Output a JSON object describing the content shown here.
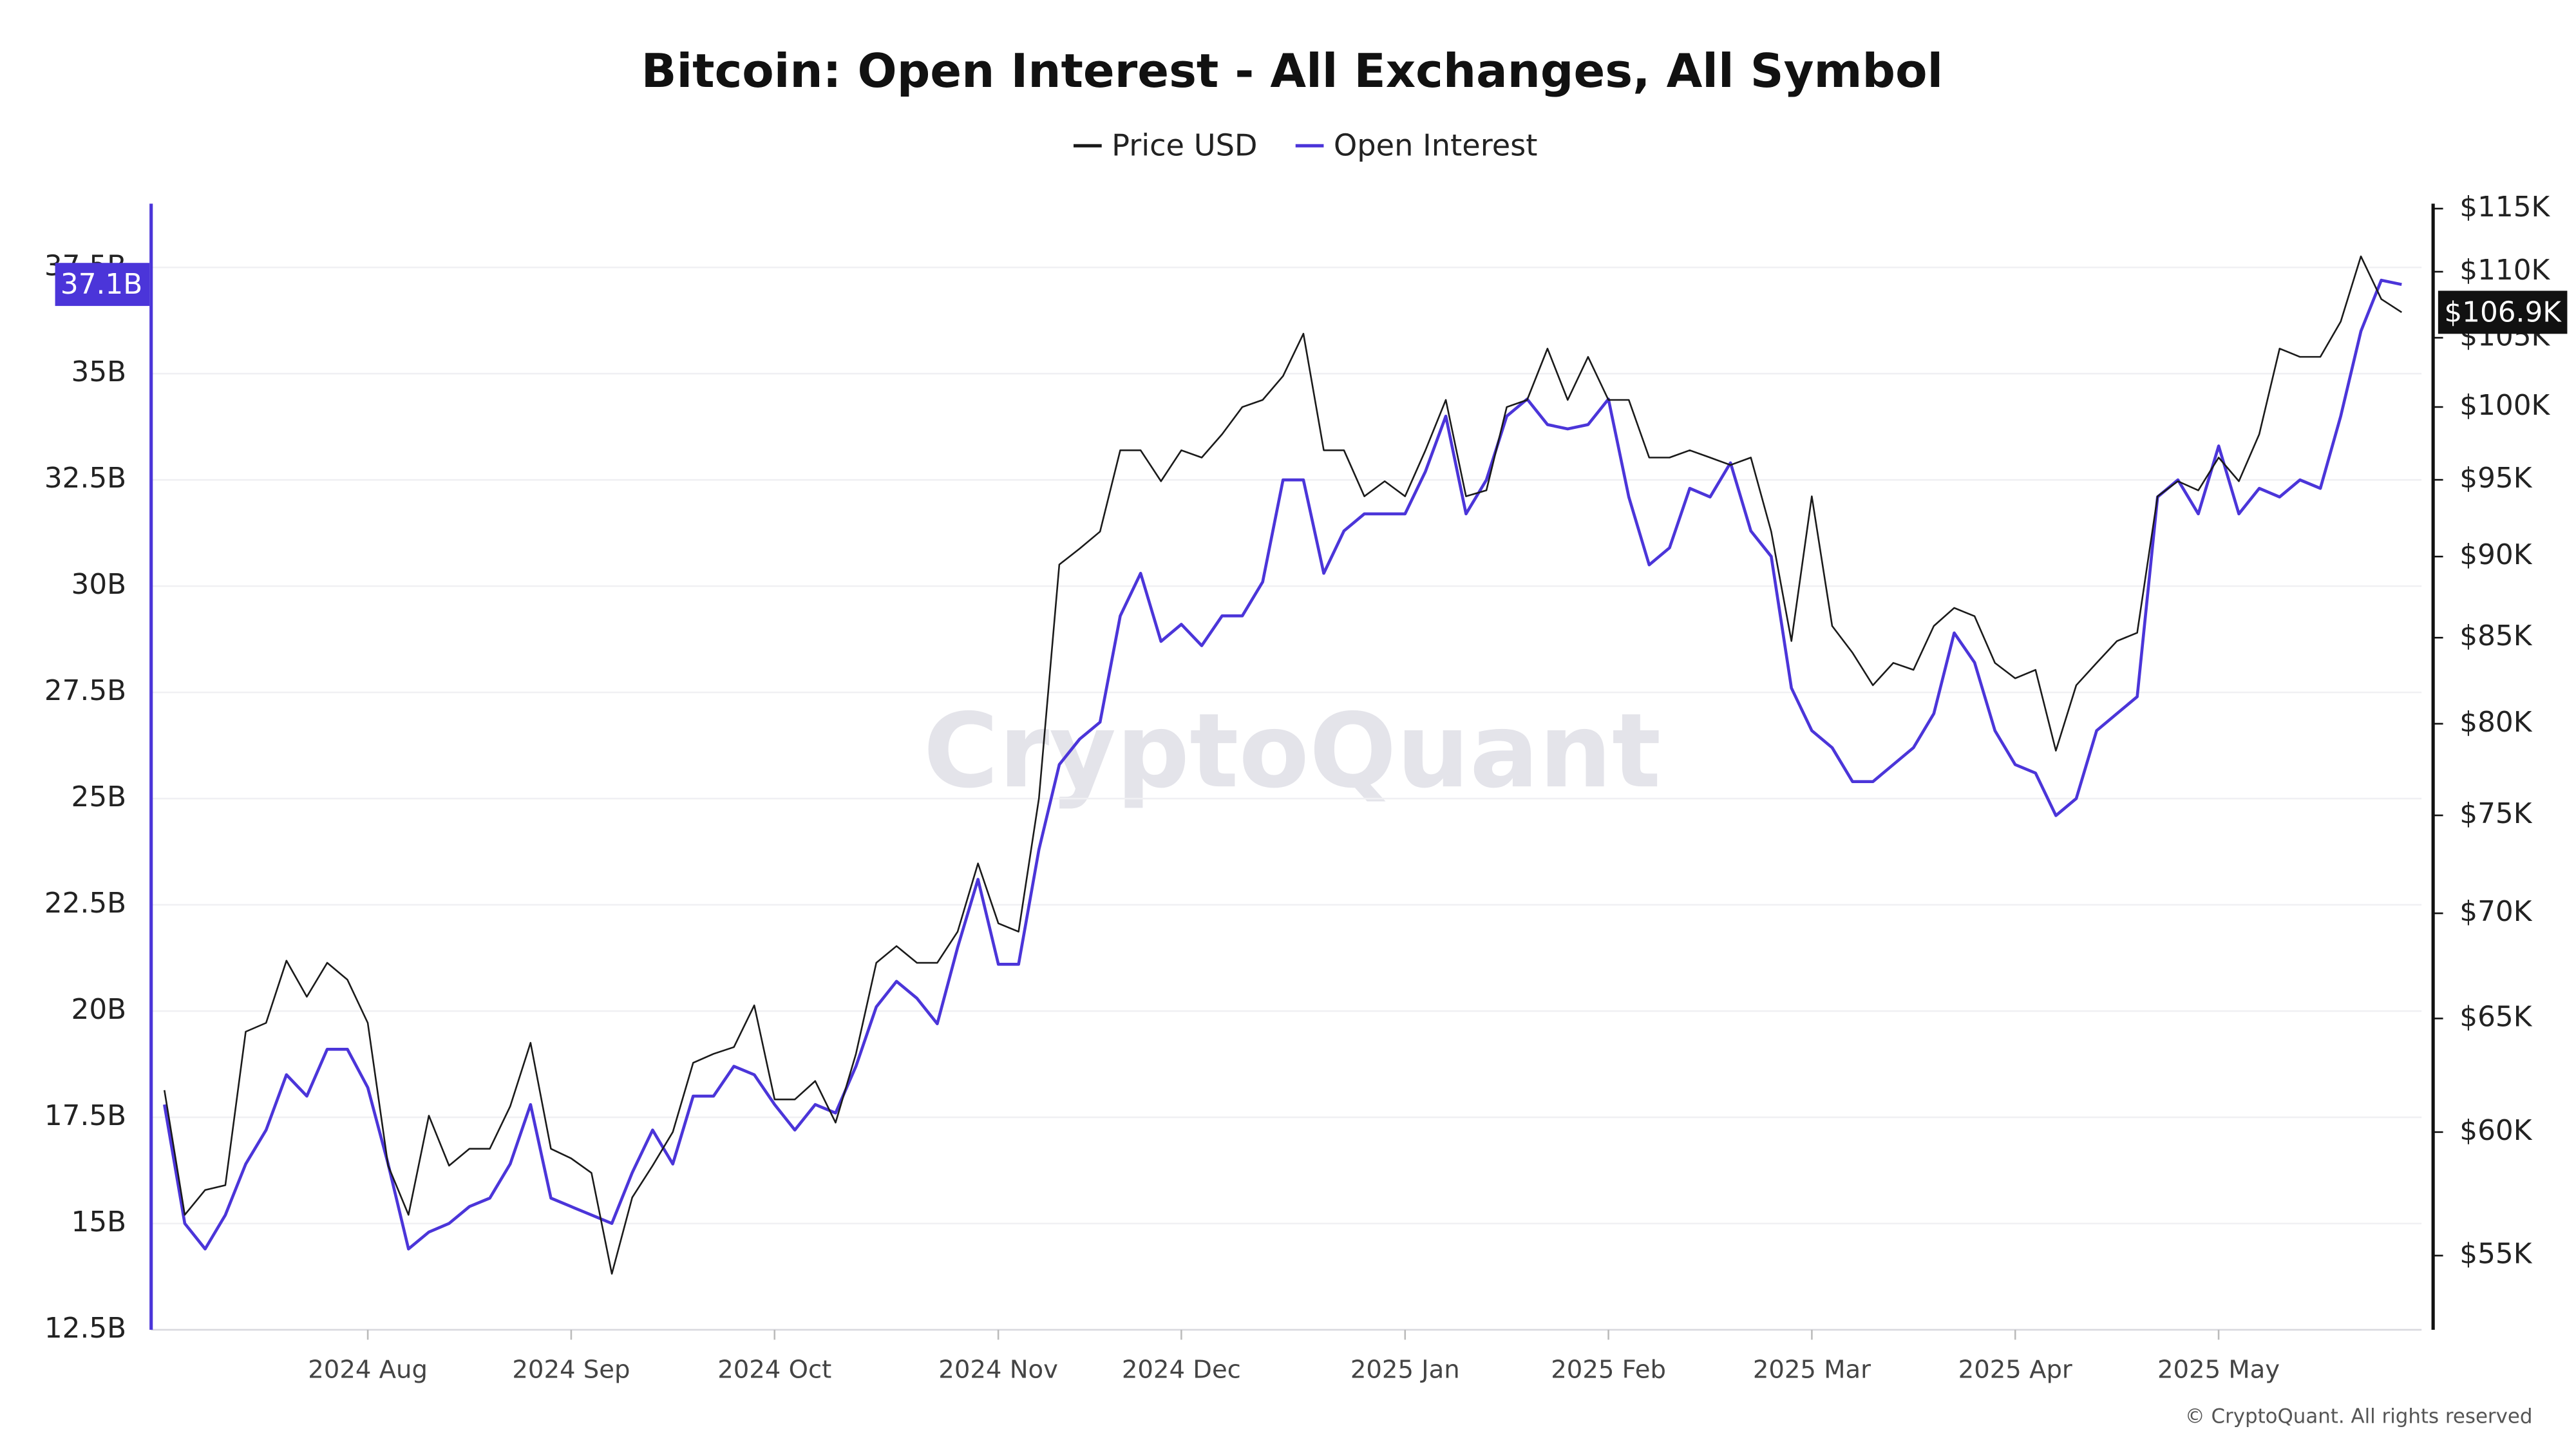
{
  "chart_data": {
    "type": "line",
    "title": "Bitcoin: Open Interest - All Exchanges, All Symbol",
    "watermark": "CryptoQuant",
    "footer": "© CryptoQuant. All rights reserved",
    "categories": [
      null,
      null,
      null,
      null,
      null,
      null,
      null,
      null,
      null,
      null,
      "2024 Aug",
      null,
      null,
      null,
      null,
      null,
      null,
      null,
      null,
      null,
      "2024 Sep",
      null,
      null,
      null,
      null,
      null,
      null,
      null,
      null,
      null,
      "2024 Oct",
      null,
      null,
      null,
      null,
      null,
      null,
      null,
      null,
      null,
      null,
      "2024 Nov",
      null,
      null,
      null,
      null,
      null,
      null,
      null,
      null,
      "2024 Dec",
      null,
      null,
      null,
      null,
      null,
      null,
      null,
      null,
      null,
      null,
      "2025 Jan",
      null,
      null,
      null,
      null,
      null,
      null,
      null,
      null,
      null,
      "2025 Feb",
      null,
      null,
      null,
      null,
      null,
      null,
      null,
      null,
      null,
      "2025 Mar",
      null,
      null,
      null,
      null,
      null,
      null,
      null,
      null,
      null,
      "2025 Apr",
      null,
      null,
      null,
      null,
      null,
      null,
      null,
      null,
      null,
      "2025 May",
      null,
      null,
      null,
      null,
      null,
      null,
      null,
      null,
      null
    ],
    "series": [
      {
        "name": "Price USD",
        "color": "#1a1a1a",
        "axis": "y2",
        "current_label": "$106.9K",
        "values": [
          61800,
          56600,
          57600,
          57800,
          64400,
          64800,
          67700,
          66000,
          67600,
          66800,
          64800,
          58600,
          56600,
          60700,
          58600,
          59300,
          59300,
          61100,
          63900,
          59300,
          58900,
          58300,
          54300,
          57300,
          58600,
          60000,
          63000,
          63400,
          63700,
          65600,
          61400,
          61400,
          62200,
          60400,
          63400,
          67600,
          68400,
          67600,
          67600,
          69100,
          72500,
          69500,
          69100,
          75900,
          89500,
          90500,
          91600,
          97000,
          97000,
          94900,
          97000,
          96500,
          98100,
          100000,
          100500,
          102200,
          105300,
          97000,
          97000,
          93900,
          94900,
          93900,
          97000,
          100500,
          93900,
          94300,
          100000,
          100500,
          104200,
          100500,
          103600,
          100500,
          100500,
          96500,
          96500,
          97000,
          96500,
          96000,
          96500,
          91600,
          84800,
          93900,
          85700,
          84100,
          82200,
          83500,
          83100,
          85700,
          86800,
          86300,
          83500,
          82600,
          83100,
          78500,
          82200,
          83500,
          84800,
          85300,
          93900,
          94900,
          94300,
          96500,
          94900,
          98100,
          104200,
          103600,
          103600,
          106200,
          111200,
          107900,
          106900
        ]
      },
      {
        "name": "Open Interest",
        "color": "#4b35d9",
        "current_label": "37.1B",
        "values": [
          17.8,
          15.0,
          14.4,
          15.2,
          16.4,
          17.2,
          18.5,
          18.0,
          19.1,
          19.1,
          18.2,
          16.4,
          14.4,
          14.8,
          15.0,
          15.4,
          15.6,
          16.4,
          17.8,
          15.6,
          15.4,
          15.2,
          15.0,
          16.2,
          17.2,
          16.4,
          18.0,
          18.0,
          18.7,
          18.5,
          17.8,
          17.2,
          17.8,
          17.6,
          18.7,
          20.1,
          20.7,
          20.3,
          19.7,
          21.5,
          23.1,
          21.1,
          21.1,
          23.8,
          25.8,
          26.4,
          26.8,
          29.3,
          30.3,
          28.7,
          29.1,
          28.6,
          29.3,
          29.3,
          30.1,
          32.5,
          32.5,
          30.3,
          31.3,
          31.7,
          31.7,
          31.7,
          32.7,
          34.0,
          31.7,
          32.5,
          34.0,
          34.4,
          33.8,
          33.7,
          33.8,
          34.4,
          32.1,
          30.5,
          30.9,
          32.3,
          32.1,
          32.9,
          31.3,
          30.7,
          27.6,
          26.6,
          26.2,
          25.4,
          25.4,
          25.8,
          26.2,
          27.0,
          28.9,
          28.2,
          26.6,
          25.8,
          25.6,
          24.6,
          25.0,
          26.6,
          27.0,
          27.4,
          32.1,
          32.5,
          31.7,
          33.3,
          31.7,
          32.3,
          32.1,
          32.5,
          32.3,
          34.0,
          36.0,
          37.2,
          37.1
        ]
      }
    ],
    "ylim": [
      12.5,
      39
    ],
    "yticks": [
      {
        "value": 12.5,
        "label": "12.5B"
      },
      {
        "value": 15,
        "label": "15B"
      },
      {
        "value": 17.5,
        "label": "17.5B"
      },
      {
        "value": 20,
        "label": "20B"
      },
      {
        "value": 22.5,
        "label": "22.5B"
      },
      {
        "value": 25,
        "label": "25B"
      },
      {
        "value": 27.5,
        "label": "27.5B"
      },
      {
        "value": 30,
        "label": "30B"
      },
      {
        "value": 32.5,
        "label": "32.5B"
      },
      {
        "value": 35,
        "label": "35B"
      },
      {
        "value": 37.5,
        "label": "37.5B"
      }
    ],
    "y2lim": [
      52200,
      115400
    ],
    "y2_log": true,
    "y2ticks": [
      {
        "value": 55000,
        "label": "$55K"
      },
      {
        "value": 60000,
        "label": "$60K"
      },
      {
        "value": 65000,
        "label": "$65K"
      },
      {
        "value": 70000,
        "label": "$70K"
      },
      {
        "value": 75000,
        "label": "$75K"
      },
      {
        "value": 80000,
        "label": "$80K"
      },
      {
        "value": 85000,
        "label": "$85K"
      },
      {
        "value": 90000,
        "label": "$90K"
      },
      {
        "value": 95000,
        "label": "$95K"
      },
      {
        "value": 100000,
        "label": "$100K"
      },
      {
        "value": 105000,
        "label": "$105K"
      },
      {
        "value": 110000,
        "label": "$110K"
      },
      {
        "value": 115000,
        "label": "$115K"
      }
    ],
    "grid": true
  }
}
